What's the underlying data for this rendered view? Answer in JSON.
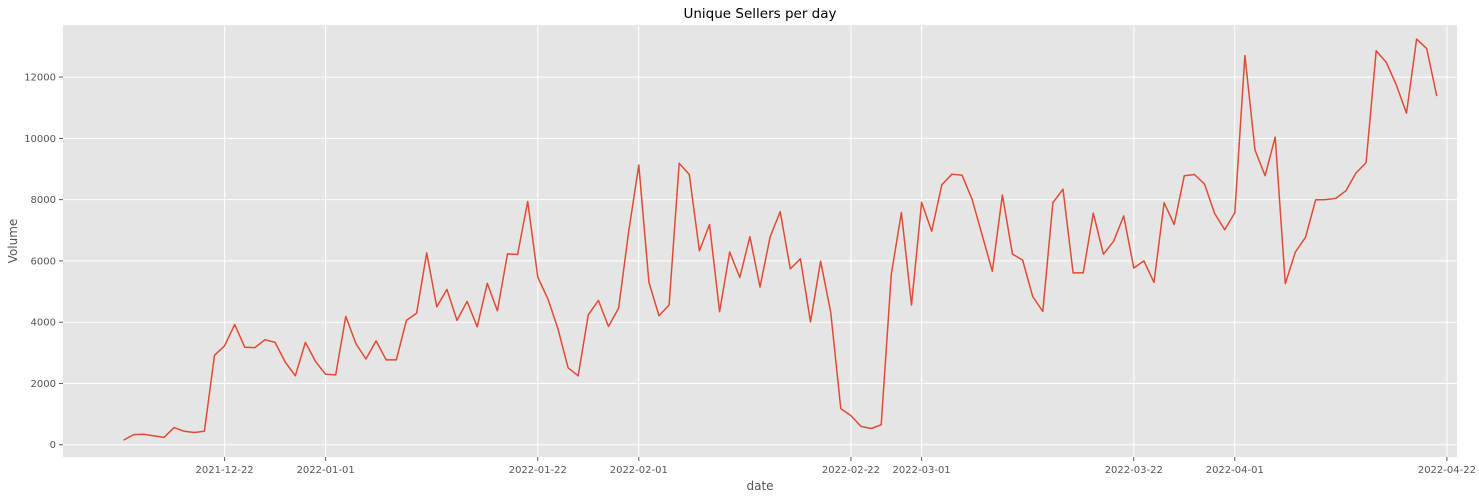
{
  "chart_data": {
    "type": "line",
    "title": "Unique Sellers per day",
    "xlabel": "date",
    "ylabel": "Volume",
    "grid": true,
    "colors": {
      "background": "#e5e5e5",
      "grid": "#ffffff",
      "line": "#e24a33"
    },
    "xlim": [
      "2021-12-06",
      "2022-04-23"
    ],
    "ylim": [
      -400,
      13700
    ],
    "x_ticks": [
      "2021-12-22",
      "2022-01-01",
      "2022-01-22",
      "2022-02-01",
      "2022-02-22",
      "2022-03-01",
      "2022-03-22",
      "2022-04-01",
      "2022-04-22"
    ],
    "y_ticks": [
      0,
      2000,
      4000,
      6000,
      8000,
      10000,
      12000
    ],
    "series": [
      {
        "start_date": "2021-12-12",
        "values": [
          150,
          330,
          340,
          290,
          240,
          560,
          440,
          400,
          440,
          2920,
          3230,
          3920,
          3180,
          3170,
          3430,
          3340,
          2700,
          2250,
          3340,
          2720,
          2300,
          2280,
          4190,
          3300,
          2800,
          3390,
          2770,
          2770,
          4060,
          4290,
          6260,
          4500,
          5070,
          4060,
          4680,
          3850,
          5270,
          4370,
          6230,
          6210,
          7940,
          5470,
          4760,
          3780,
          2510,
          2250,
          4240,
          4710,
          3860,
          4460,
          6960,
          9130,
          5310,
          4210,
          4560,
          9190,
          8820,
          6330,
          7190,
          4340,
          6290,
          5460,
          6790,
          5150,
          6780,
          7610,
          5740,
          6070,
          4010,
          5990,
          4330,
          1180,
          950,
          600,
          530,
          650,
          5560,
          7580,
          4560,
          7910,
          6970,
          8480,
          8830,
          8800,
          8010,
          6840,
          5660,
          8150,
          6220,
          6030,
          4840,
          4350,
          7900,
          8340,
          5610,
          5610,
          7560,
          6220,
          6640,
          7470,
          5770,
          6000,
          5300,
          7900,
          7190,
          8780,
          8820,
          8510,
          7550,
          7020,
          7570,
          12700,
          9620,
          8780,
          10040,
          5260,
          6290,
          6770,
          7990,
          8000,
          8040,
          8290,
          8870,
          9210,
          12860,
          12480,
          11740,
          10820,
          13240,
          12930,
          11380
        ]
      }
    ]
  }
}
